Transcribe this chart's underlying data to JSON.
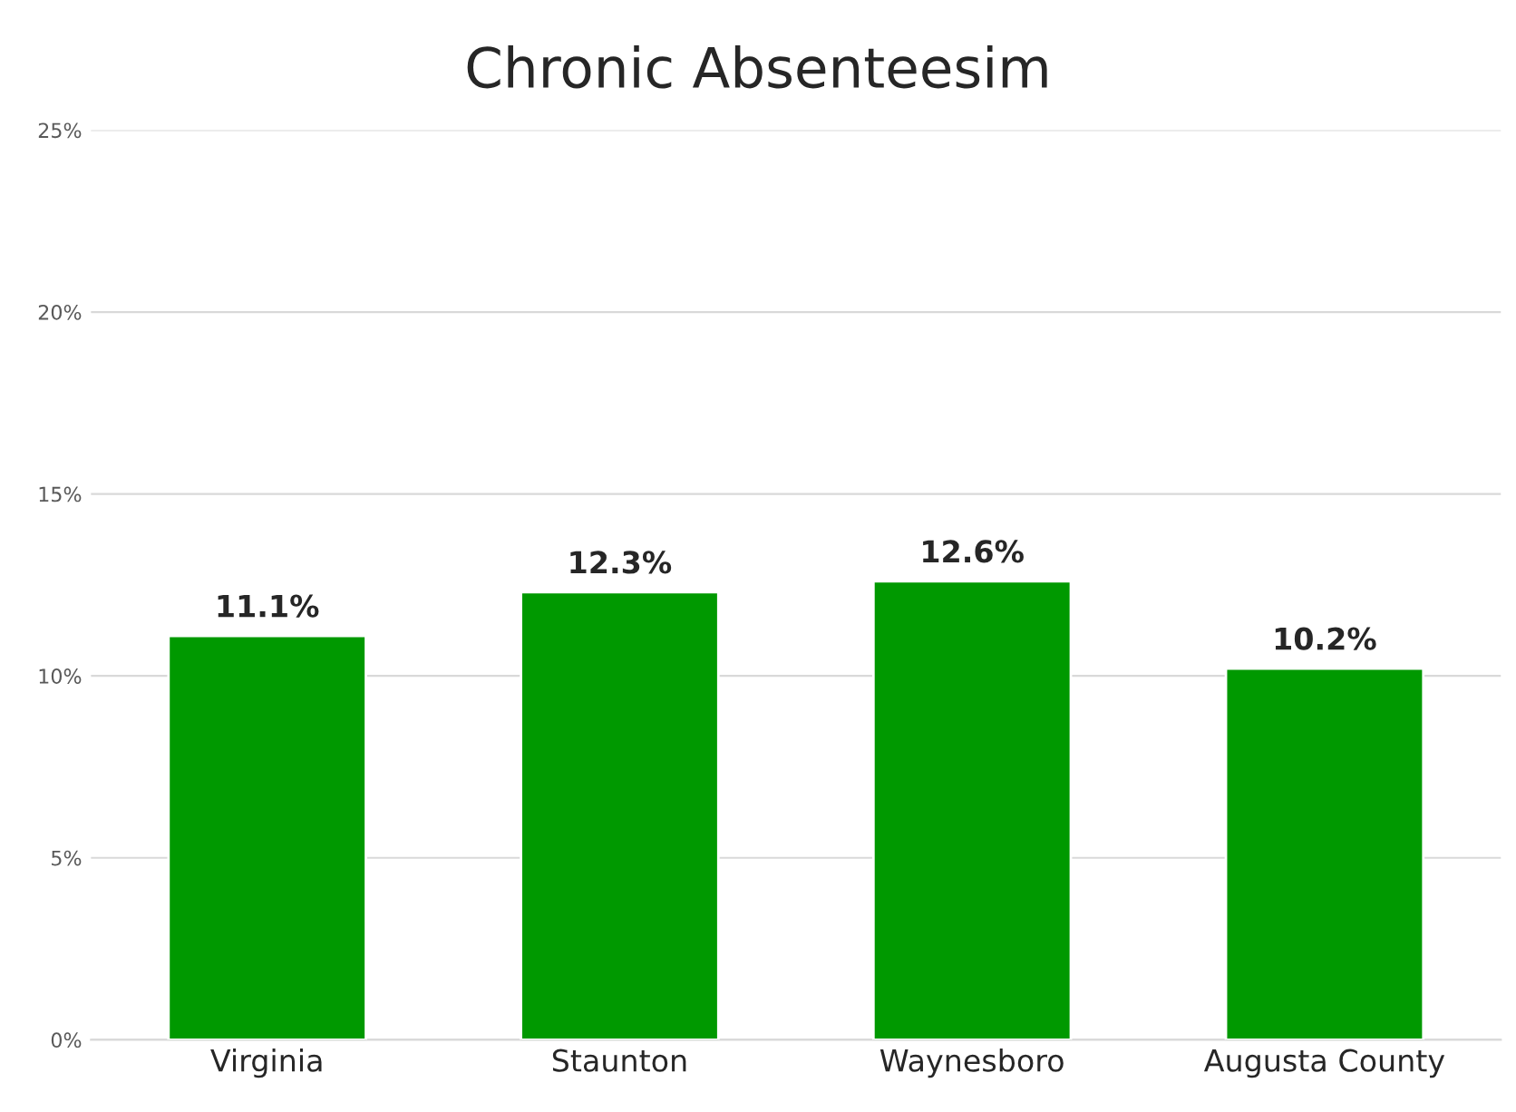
{
  "chart_data": {
    "type": "bar",
    "title": "Chronic Absenteesim",
    "categories": [
      "Virginia",
      "Staunton",
      "Waynesboro",
      "Augusta County"
    ],
    "values": [
      11.1,
      12.3,
      12.6,
      10.2
    ],
    "value_labels": [
      "11.1%",
      "12.3%",
      "12.6%",
      "10.2%"
    ],
    "color": "#009900",
    "ylim": [
      0,
      25
    ],
    "yticks": [
      {
        "value": 0,
        "label": "0%"
      },
      {
        "value": 5,
        "label": "5%"
      },
      {
        "value": 10,
        "label": "10%"
      },
      {
        "value": 15,
        "label": "15%"
      },
      {
        "value": 20,
        "label": "20%"
      },
      {
        "value": 25,
        "label": "25%"
      }
    ],
    "grid": "y"
  }
}
